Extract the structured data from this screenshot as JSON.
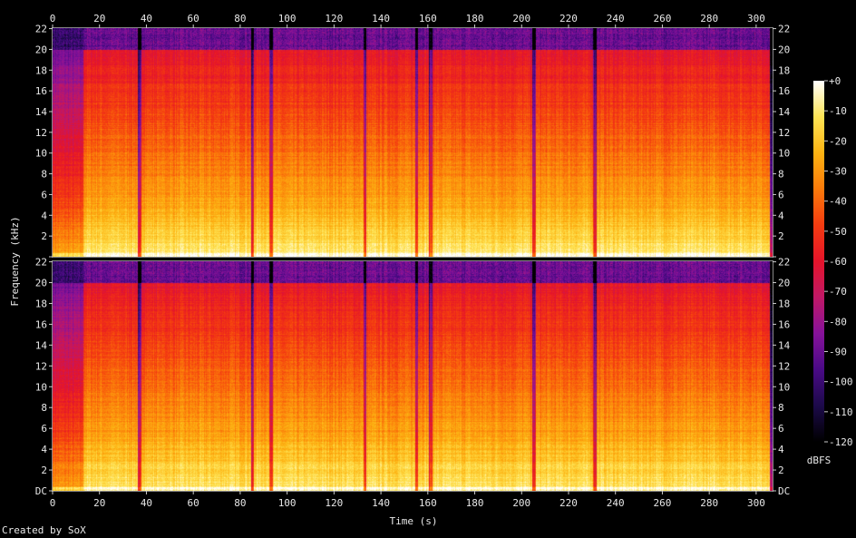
{
  "chart_data": {
    "type": "heatmap",
    "xlabel": "Time (s)",
    "ylabel": "Frequency (kHz)",
    "x_ticks": [
      0,
      20,
      40,
      60,
      80,
      100,
      120,
      140,
      160,
      180,
      200,
      220,
      240,
      260,
      280,
      300
    ],
    "xlim": [
      0,
      307
    ],
    "y_ticks": [
      {
        "value": 0,
        "label": "DC"
      },
      {
        "value": 2,
        "label": "2"
      },
      {
        "value": 4,
        "label": "4"
      },
      {
        "value": 6,
        "label": "6"
      },
      {
        "value": 8,
        "label": "8"
      },
      {
        "value": 10,
        "label": "10"
      },
      {
        "value": 12,
        "label": "12"
      },
      {
        "value": 14,
        "label": "14"
      },
      {
        "value": 16,
        "label": "16"
      },
      {
        "value": 18,
        "label": "18"
      },
      {
        "value": 20,
        "label": "20"
      },
      {
        "value": 22,
        "label": "22"
      }
    ],
    "ylim": [
      0,
      22.05
    ],
    "channels": 2,
    "colorbar": {
      "label": "dBFS",
      "ticks": [
        {
          "value": 0,
          "label": "+0"
        },
        {
          "value": -10,
          "label": "-10"
        },
        {
          "value": -20,
          "label": "-20"
        },
        {
          "value": -30,
          "label": "-30"
        },
        {
          "value": -40,
          "label": "-40"
        },
        {
          "value": -50,
          "label": "-50"
        },
        {
          "value": -60,
          "label": "-60"
        },
        {
          "value": -70,
          "label": "-70"
        },
        {
          "value": -80,
          "label": "-80"
        },
        {
          "value": -90,
          "label": "-90"
        },
        {
          "value": -100,
          "label": "-100"
        },
        {
          "value": -110,
          "label": "-110"
        },
        {
          "value": -120,
          "label": "-120"
        }
      ],
      "range": [
        -120,
        0
      ]
    },
    "intro_end_s": 13,
    "end_s": 307,
    "lowpass_khz": 20,
    "dips_s": [
      37,
      85,
      93,
      133,
      155,
      161,
      205,
      231
    ],
    "colormap": [
      "#000000",
      "#1c0a4a",
      "#4a0a86",
      "#86129a",
      "#c01866",
      "#e5142a",
      "#f43b10",
      "#fb7a0a",
      "#fdb312",
      "#fee455",
      "#ffffff"
    ]
  },
  "credit": "Created by SoX"
}
